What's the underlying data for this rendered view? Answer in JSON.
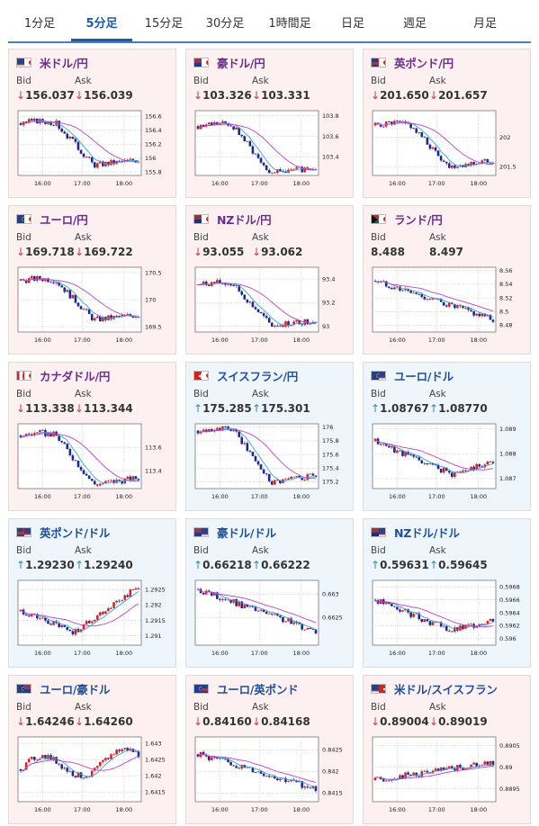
{
  "tabs": [
    {
      "label": "1分足"
    },
    {
      "label": "5分足",
      "active": true
    },
    {
      "label": "15分足"
    },
    {
      "label": "30分足"
    },
    {
      "label": "1時間足"
    },
    {
      "label": "日足"
    },
    {
      "label": "週足"
    },
    {
      "label": "月足"
    }
  ],
  "labels": {
    "bid": "Bid",
    "ask": "Ask"
  },
  "x_ticks": [
    "16:00",
    "17:00",
    "18:00"
  ],
  "cards": [
    {
      "pair": "米ドル/円",
      "flag": "us-jp-flag",
      "dir": "down",
      "bid": "156.037",
      "ask": "156.039",
      "chart_data": {
        "type": "candlestick",
        "y_ticks": [
          "156.6",
          "156.4",
          "156.2",
          "156",
          "155.8"
        ],
        "ylim": [
          155.75,
          156.68
        ],
        "start": 156.5,
        "end": 155.98,
        "shape": "dip",
        "x_ticks": [
          "16:00",
          "17:00",
          "18:00"
        ]
      }
    },
    {
      "pair": "豪ドル/円",
      "flag": "au-jp-flag",
      "dir": "down",
      "bid": "103.326",
      "ask": "103.331",
      "chart_data": {
        "type": "candlestick",
        "y_ticks": [
          "103.8",
          "103.6",
          "103.4"
        ],
        "ylim": [
          103.22,
          103.85
        ],
        "start": 103.7,
        "end": 103.3,
        "shape": "dip",
        "x_ticks": [
          "16:00",
          "17:00",
          "18:00"
        ]
      }
    },
    {
      "pair": "英ポンド/円",
      "flag": "gb-jp-flag",
      "dir": "down",
      "bid": "201.650",
      "ask": "201.657",
      "chart_data": {
        "type": "candlestick",
        "y_ticks": [
          "202",
          "201.5"
        ],
        "ylim": [
          201.35,
          202.45
        ],
        "start": 202.2,
        "end": 201.6,
        "shape": "dip",
        "x_ticks": [
          "16:00",
          "17:00",
          "18:00"
        ]
      }
    },
    {
      "pair": "ユーロ/円",
      "flag": "eu-jp-flag",
      "dir": "down",
      "bid": "169.718",
      "ask": "169.722",
      "chart_data": {
        "type": "candlestick",
        "y_ticks": [
          "170.5",
          "170",
          "169.5"
        ],
        "ylim": [
          169.4,
          170.6
        ],
        "start": 170.35,
        "end": 169.72,
        "shape": "dip",
        "x_ticks": [
          "16:00",
          "17:00",
          "18:00"
        ]
      }
    },
    {
      "pair": "NZドル/円",
      "flag": "nz-jp-flag",
      "dir": "down",
      "bid": "93.055",
      "ask": "93.062",
      "chart_data": {
        "type": "candlestick",
        "y_ticks": [
          "93.4",
          "93.2",
          "93"
        ],
        "ylim": [
          92.95,
          93.5
        ],
        "start": 93.35,
        "end": 93.05,
        "shape": "dip",
        "x_ticks": [
          "16:00",
          "17:00",
          "18:00"
        ]
      }
    },
    {
      "pair": "ランド/円",
      "flag": "za-jp-flag",
      "dir": "none",
      "bid": "8.488",
      "ask": "8.497",
      "chart_data": {
        "type": "candlestick",
        "y_ticks": [
          "8.56",
          "8.54",
          "8.52",
          "8.5",
          "8.48"
        ],
        "ylim": [
          8.47,
          8.565
        ],
        "start": 8.545,
        "end": 8.488,
        "shape": "down",
        "x_ticks": [
          "16:00",
          "17:00",
          "18:00"
        ]
      }
    },
    {
      "pair": "カナダドル/円",
      "flag": "ca-jp-flag",
      "dir": "down",
      "bid": "113.338",
      "ask": "113.344",
      "chart_data": {
        "type": "candlestick",
        "y_ticks": [
          "113.6",
          "113.4"
        ],
        "ylim": [
          113.25,
          113.8
        ],
        "start": 113.7,
        "end": 113.34,
        "shape": "dip",
        "x_ticks": [
          "16:00",
          "17:00",
          "18:00"
        ]
      }
    },
    {
      "pair": "スイスフラン/円",
      "flag": "ch-jp-flag",
      "dir": "up",
      "bid": "175.285",
      "ask": "175.301",
      "chart_data": {
        "type": "candlestick",
        "y_ticks": [
          "176",
          "175.8",
          "175.6",
          "175.4",
          "175.2"
        ],
        "ylim": [
          175.1,
          176.05
        ],
        "start": 175.95,
        "end": 175.3,
        "shape": "dip",
        "x_ticks": [
          "16:00",
          "17:00",
          "18:00"
        ]
      }
    },
    {
      "pair": "ユーロ/ドル",
      "flag": "eu-us-flag",
      "dir": "up",
      "bid": "1.08767",
      "ask": "1.08770",
      "chart_data": {
        "type": "candlestick",
        "y_ticks": [
          "1.089",
          "1.088",
          "1.087"
        ],
        "ylim": [
          1.0866,
          1.0892
        ],
        "start": 1.0885,
        "end": 1.0877,
        "shape": "vdip",
        "x_ticks": [
          "16:00",
          "17:00",
          "18:00"
        ]
      }
    },
    {
      "pair": "英ポンド/ドル",
      "flag": "gb-us-flag",
      "dir": "up",
      "bid": "1.29230",
      "ask": "1.29240",
      "chart_data": {
        "type": "candlestick",
        "y_ticks": [
          "1.2925",
          "1.292",
          "1.2915",
          "1.291"
        ],
        "ylim": [
          1.2907,
          1.2928
        ],
        "start": 1.2918,
        "end": 1.2923,
        "shape": "vup",
        "x_ticks": [
          "16:00",
          "17:00",
          "18:00"
        ]
      }
    },
    {
      "pair": "豪ドル/ドル",
      "flag": "au-us-flag",
      "dir": "up",
      "bid": "0.66218",
      "ask": "0.66222",
      "chart_data": {
        "type": "candlestick",
        "y_ticks": [
          "0.663",
          "0.6625"
        ],
        "ylim": [
          0.6619,
          0.6633
        ],
        "start": 0.6631,
        "end": 0.6622,
        "shape": "down",
        "x_ticks": [
          "16:00",
          "17:00",
          "18:00"
        ]
      }
    },
    {
      "pair": "NZドル/ドル",
      "flag": "nz-us-flag",
      "dir": "up",
      "bid": "0.59631",
      "ask": "0.59645",
      "chart_data": {
        "type": "candlestick",
        "y_ticks": [
          "0.5968",
          "0.5966",
          "0.5964",
          "0.5962",
          "0.596"
        ],
        "ylim": [
          0.5959,
          0.5969
        ],
        "start": 0.5966,
        "end": 0.5963,
        "shape": "vdip",
        "x_ticks": [
          "16:00",
          "17:00",
          "18:00"
        ]
      }
    },
    {
      "pair": "ユーロ/豪ドル",
      "flag": "eu-au-flag",
      "dir": "down",
      "bid": "1.64246",
      "ask": "1.64260",
      "chart_data": {
        "type": "candlestick",
        "y_ticks": [
          "1.643",
          "1.6425",
          "1.642",
          "1.6415"
        ],
        "ylim": [
          1.6412,
          1.6432
        ],
        "start": 1.6422,
        "end": 1.6425,
        "shape": "wave",
        "x_ticks": [
          "16:00",
          "17:00",
          "18:00"
        ]
      }
    },
    {
      "pair": "ユーロ/英ポンド",
      "flag": "eu-gb-flag",
      "dir": "down",
      "bid": "0.84160",
      "ask": "0.84168",
      "chart_data": {
        "type": "candlestick",
        "y_ticks": [
          "0.8425",
          "0.842",
          "0.8415"
        ],
        "ylim": [
          0.8413,
          0.8428
        ],
        "start": 0.8424,
        "end": 0.8416,
        "shape": "down",
        "x_ticks": [
          "16:00",
          "17:00",
          "18:00"
        ]
      }
    },
    {
      "pair": "米ドル/スイスフラン",
      "flag": "us-ch-flag",
      "dir": "down",
      "bid": "0.89004",
      "ask": "0.89019",
      "chart_data": {
        "type": "candlestick",
        "y_ticks": [
          "0.8905",
          "0.89",
          "0.8895"
        ],
        "ylim": [
          0.8892,
          0.8907
        ],
        "start": 0.8897,
        "end": 0.8901,
        "shape": "up",
        "x_ticks": [
          "16:00",
          "17:00",
          "18:00"
        ]
      }
    }
  ],
  "colors": {
    "up_candle": "#e02020",
    "down_candle": "#1a2a8c",
    "ma_fast": "#3aa0e0",
    "ma_slow": "#c040c8",
    "tab_accent": "#1e5aa8"
  }
}
